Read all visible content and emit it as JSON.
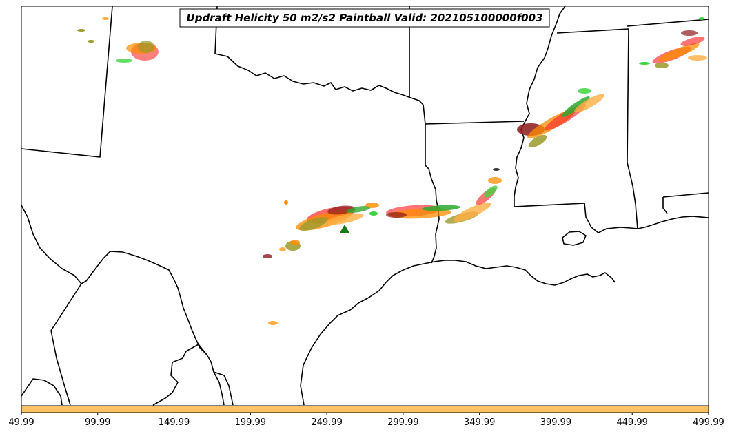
{
  "map": {
    "title": "Updraft Helicity 50 m2/s2 Paintball Valid: 202105100000f003",
    "title_color": "#000000",
    "land_color": "#ffffff",
    "boundary_color": "#000000"
  },
  "colorbar": {
    "fill_color": "#ffc266",
    "tick_labels": [
      "49.99",
      "99.99",
      "149.99",
      "199.99",
      "249.99",
      "299.99",
      "349.99",
      "399.99",
      "449.99",
      "499.99"
    ]
  },
  "paintball_colors": {
    "red": "#ff2a2a",
    "dark_red": "#8b1a1a",
    "orange": "#ff8c00",
    "light_orange": "#ffae42",
    "olive": "#9a9a2a",
    "green": "#2ea82e",
    "light_green": "#3fd43f",
    "dark_green": "#167a16",
    "dark_gray": "#3a3a3a"
  }
}
